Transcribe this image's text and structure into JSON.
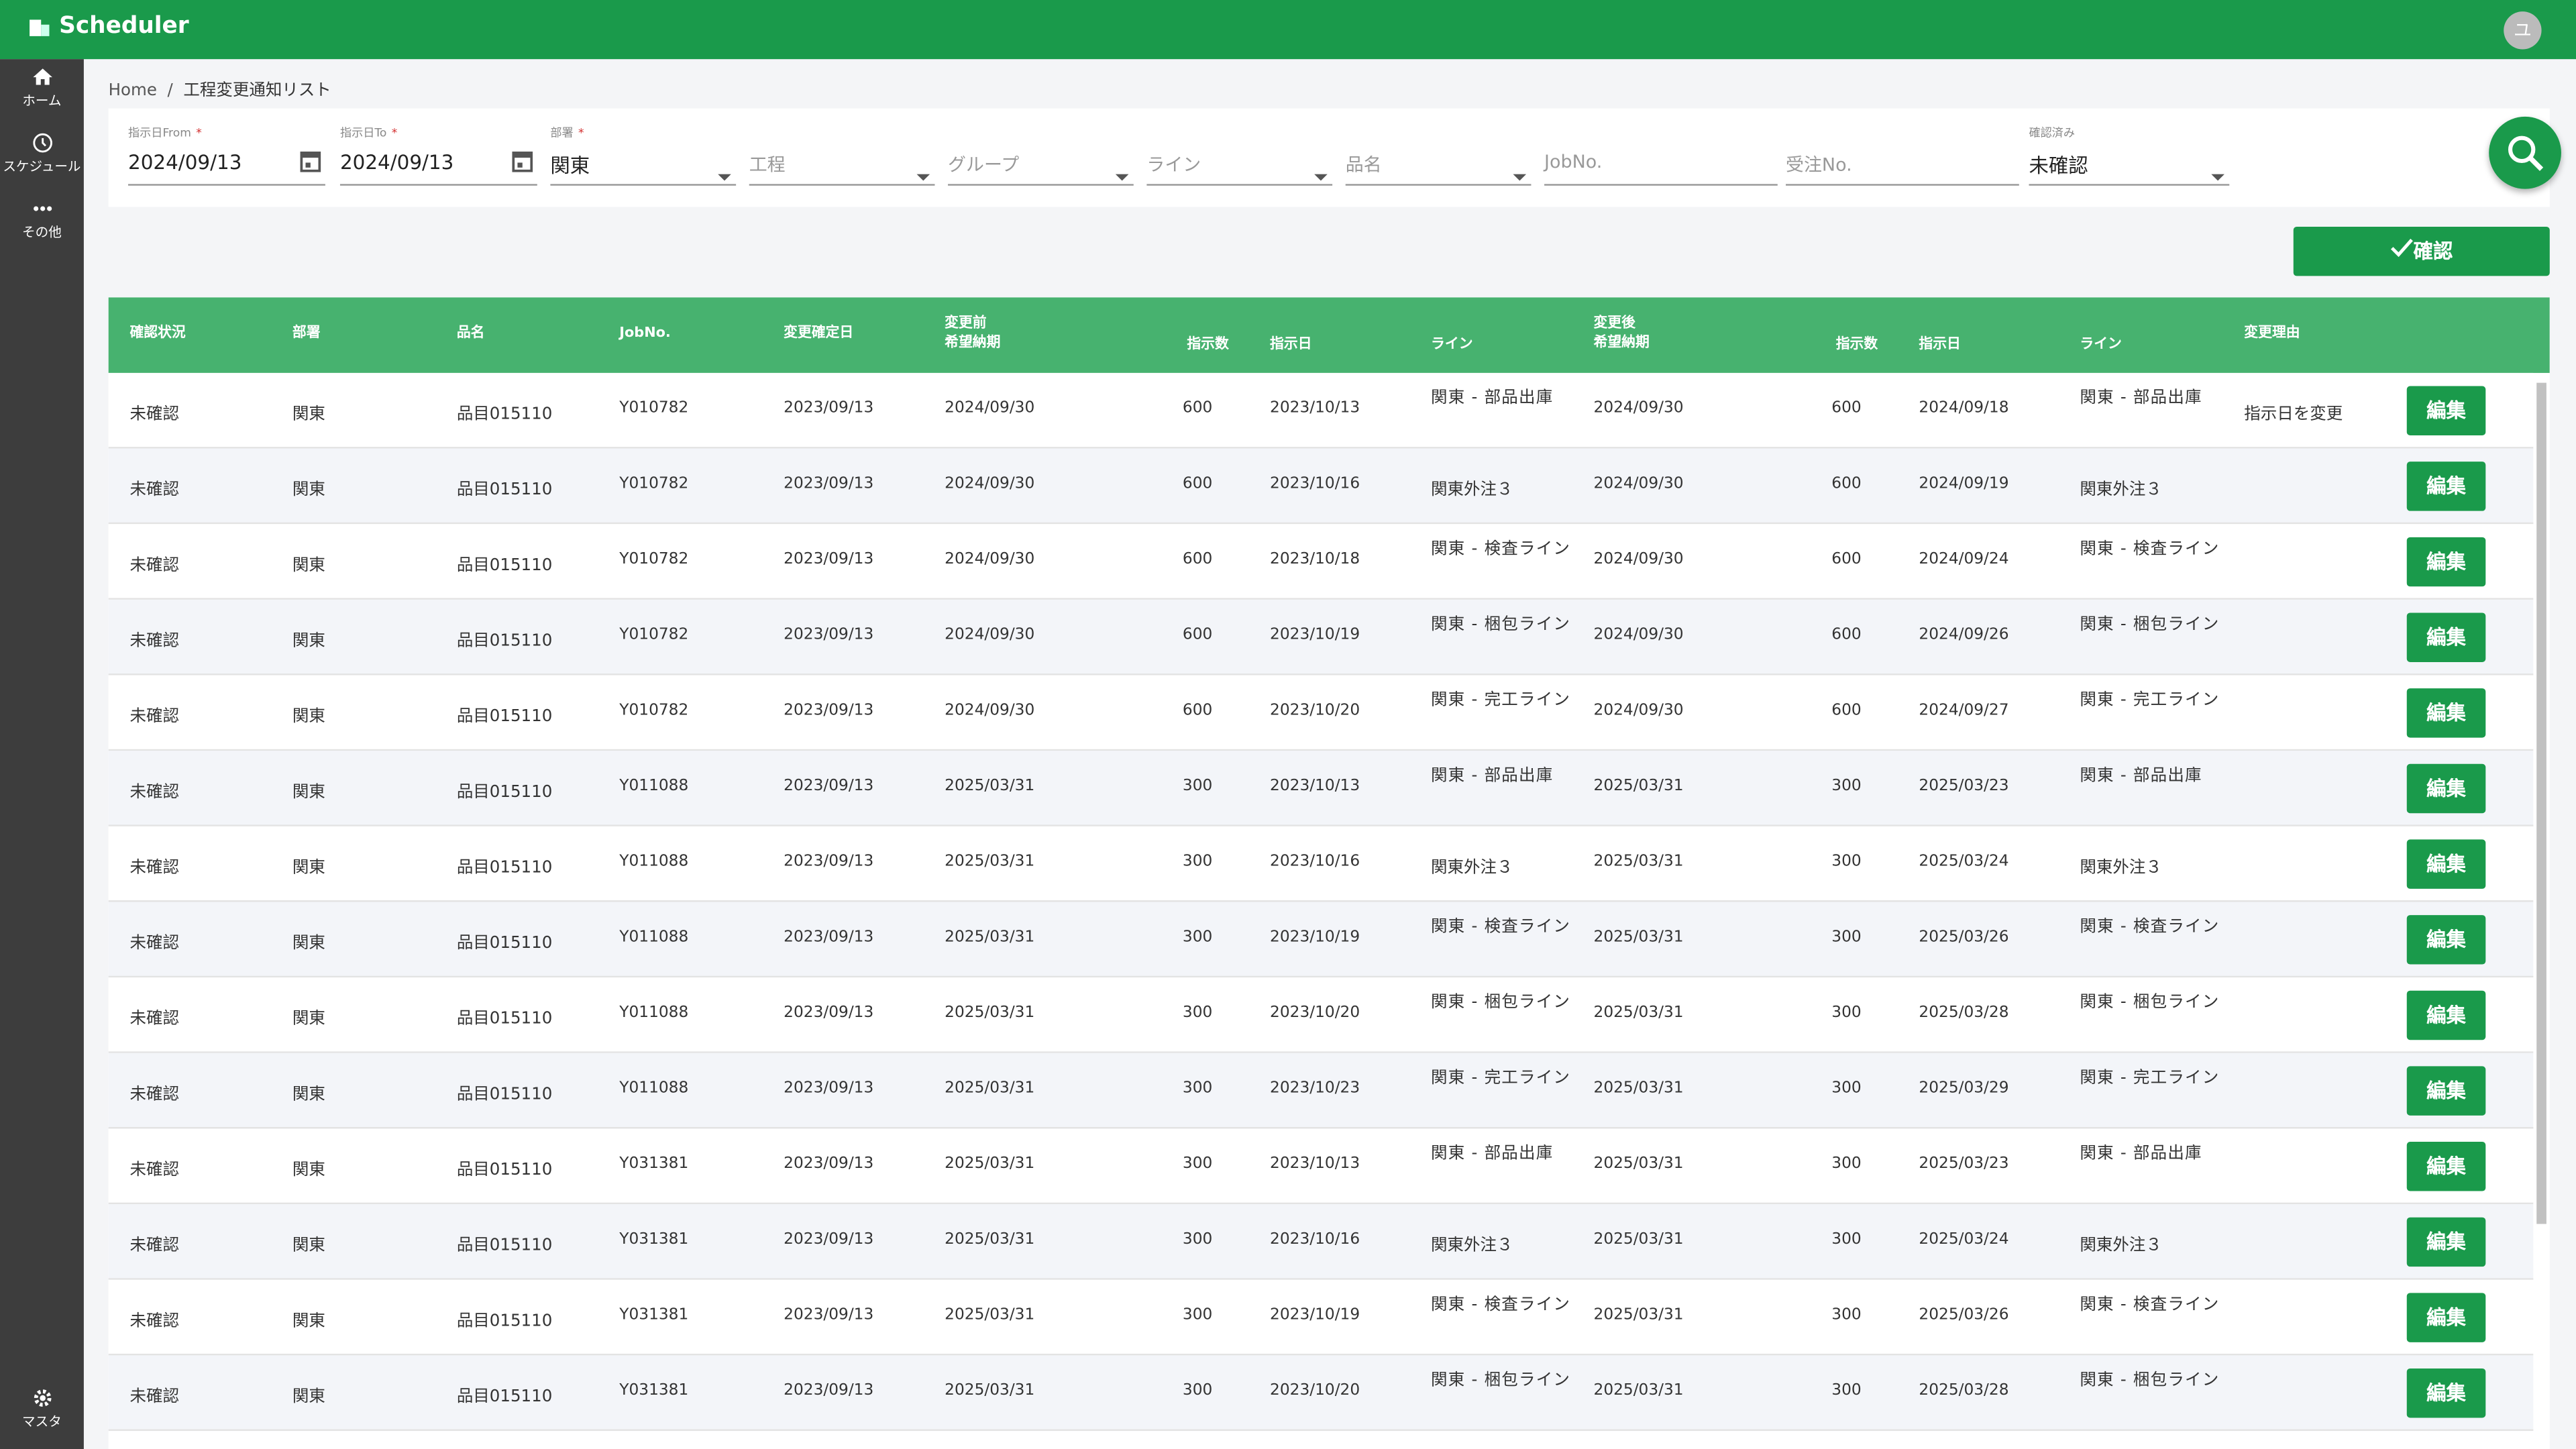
{
  "header": {
    "title": "Scheduler",
    "avatar": "ユ"
  },
  "sidebar": [
    {
      "label": "ホーム"
    },
    {
      "label": "スケジュール"
    },
    {
      "label": "その他"
    }
  ],
  "sidebar_bottom": {
    "label": "マスタ"
  },
  "breadcrumb": {
    "home": "Home",
    "separator": "/",
    "current": "工程変更通知リスト"
  },
  "filters": {
    "required_mark": "*",
    "fields": [
      {
        "label": "指示日From",
        "required": true,
        "value": "2024/09/13",
        "kind": "date"
      },
      {
        "label": "指示日To",
        "required": true,
        "value": "2024/09/13",
        "kind": "date"
      },
      {
        "label": "部署",
        "required": true,
        "value": "関東",
        "kind": "select"
      },
      {
        "placeholder": "工程",
        "kind": "select"
      },
      {
        "placeholder": "グループ",
        "kind": "select"
      },
      {
        "placeholder": "ライン",
        "kind": "select"
      },
      {
        "placeholder": "品名",
        "kind": "select"
      },
      {
        "placeholder": "JobNo.",
        "kind": "text"
      },
      {
        "placeholder": "受注No.",
        "kind": "text"
      },
      {
        "label": "確認済み",
        "required": false,
        "value": "未確認",
        "kind": "select"
      }
    ]
  },
  "confirm_button": "確認",
  "table": {
    "headers": [
      "確認状況",
      "部署",
      "品名",
      "JobNo.",
      "変更確定日",
      "変更前\n希望納期",
      "指示数",
      "指示日",
      "ライン",
      "変更後\n希望納期",
      "指示数",
      "指示日",
      "ライン",
      "変更理由"
    ],
    "edit_label": "編集",
    "rows": [
      [
        "未確認",
        "関東",
        "品目015110",
        "Y010782",
        "2023/09/13",
        "2024/09/30",
        "600",
        "2023/10/13",
        "関東 - 部品出庫",
        "2024/09/30",
        "600",
        "2024/09/18",
        "関東 - 部品出庫",
        "指示日を変更"
      ],
      [
        "未確認",
        "関東",
        "品目015110",
        "Y010782",
        "2023/09/13",
        "2024/09/30",
        "600",
        "2023/10/16",
        "関東外注３",
        "2024/09/30",
        "600",
        "2024/09/19",
        "関東外注３",
        null
      ],
      [
        "未確認",
        "関東",
        "品目015110",
        "Y010782",
        "2023/09/13",
        "2024/09/30",
        "600",
        "2023/10/18",
        "関東 - 検査ライン",
        "2024/09/30",
        "600",
        "2024/09/24",
        "関東 - 検査ライン",
        null
      ],
      [
        "未確認",
        "関東",
        "品目015110",
        "Y010782",
        "2023/09/13",
        "2024/09/30",
        "600",
        "2023/10/19",
        "関東 - 梱包ライン",
        "2024/09/30",
        "600",
        "2024/09/26",
        "関東 - 梱包ライン",
        null
      ],
      [
        "未確認",
        "関東",
        "品目015110",
        "Y010782",
        "2023/09/13",
        "2024/09/30",
        "600",
        "2023/10/20",
        "関東 - 完工ライン",
        "2024/09/30",
        "600",
        "2024/09/27",
        "関東 - 完工ライン",
        null
      ],
      [
        "未確認",
        "関東",
        "品目015110",
        "Y011088",
        "2023/09/13",
        "2025/03/31",
        "300",
        "2023/10/13",
        "関東 - 部品出庫",
        "2025/03/31",
        "300",
        "2025/03/23",
        "関東 - 部品出庫",
        null
      ],
      [
        "未確認",
        "関東",
        "品目015110",
        "Y011088",
        "2023/09/13",
        "2025/03/31",
        "300",
        "2023/10/16",
        "関東外注３",
        "2025/03/31",
        "300",
        "2025/03/24",
        "関東外注３",
        null
      ],
      [
        "未確認",
        "関東",
        "品目015110",
        "Y011088",
        "2023/09/13",
        "2025/03/31",
        "300",
        "2023/10/19",
        "関東 - 検査ライン",
        "2025/03/31",
        "300",
        "2025/03/26",
        "関東 - 検査ライン",
        null
      ],
      [
        "未確認",
        "関東",
        "品目015110",
        "Y011088",
        "2023/09/13",
        "2025/03/31",
        "300",
        "2023/10/20",
        "関東 - 梱包ライン",
        "2025/03/31",
        "300",
        "2025/03/28",
        "関東 - 梱包ライン",
        null
      ],
      [
        "未確認",
        "関東",
        "品目015110",
        "Y011088",
        "2023/09/13",
        "2025/03/31",
        "300",
        "2023/10/23",
        "関東 - 完工ライン",
        "2025/03/31",
        "300",
        "2025/03/29",
        "関東 - 完工ライン",
        null
      ],
      [
        "未確認",
        "関東",
        "品目015110",
        "Y031381",
        "2023/09/13",
        "2025/03/31",
        "300",
        "2023/10/13",
        "関東 - 部品出庫",
        "2025/03/31",
        "300",
        "2025/03/23",
        "関東 - 部品出庫",
        null
      ],
      [
        "未確認",
        "関東",
        "品目015110",
        "Y031381",
        "2023/09/13",
        "2025/03/31",
        "300",
        "2023/10/16",
        "関東外注３",
        "2025/03/31",
        "300",
        "2025/03/24",
        "関東外注３",
        null
      ],
      [
        "未確認",
        "関東",
        "品目015110",
        "Y031381",
        "2023/09/13",
        "2025/03/31",
        "300",
        "2023/10/19",
        "関東 - 検査ライン",
        "2025/03/31",
        "300",
        "2025/03/26",
        "関東 - 検査ライン",
        null
      ],
      [
        "未確認",
        "関東",
        "品目015110",
        "Y031381",
        "2023/09/13",
        "2025/03/31",
        "300",
        "2023/10/20",
        "関東 - 梱包ライン",
        "2025/03/31",
        "300",
        "2025/03/28",
        "関東 - 梱包ライン",
        null
      ]
    ]
  }
}
